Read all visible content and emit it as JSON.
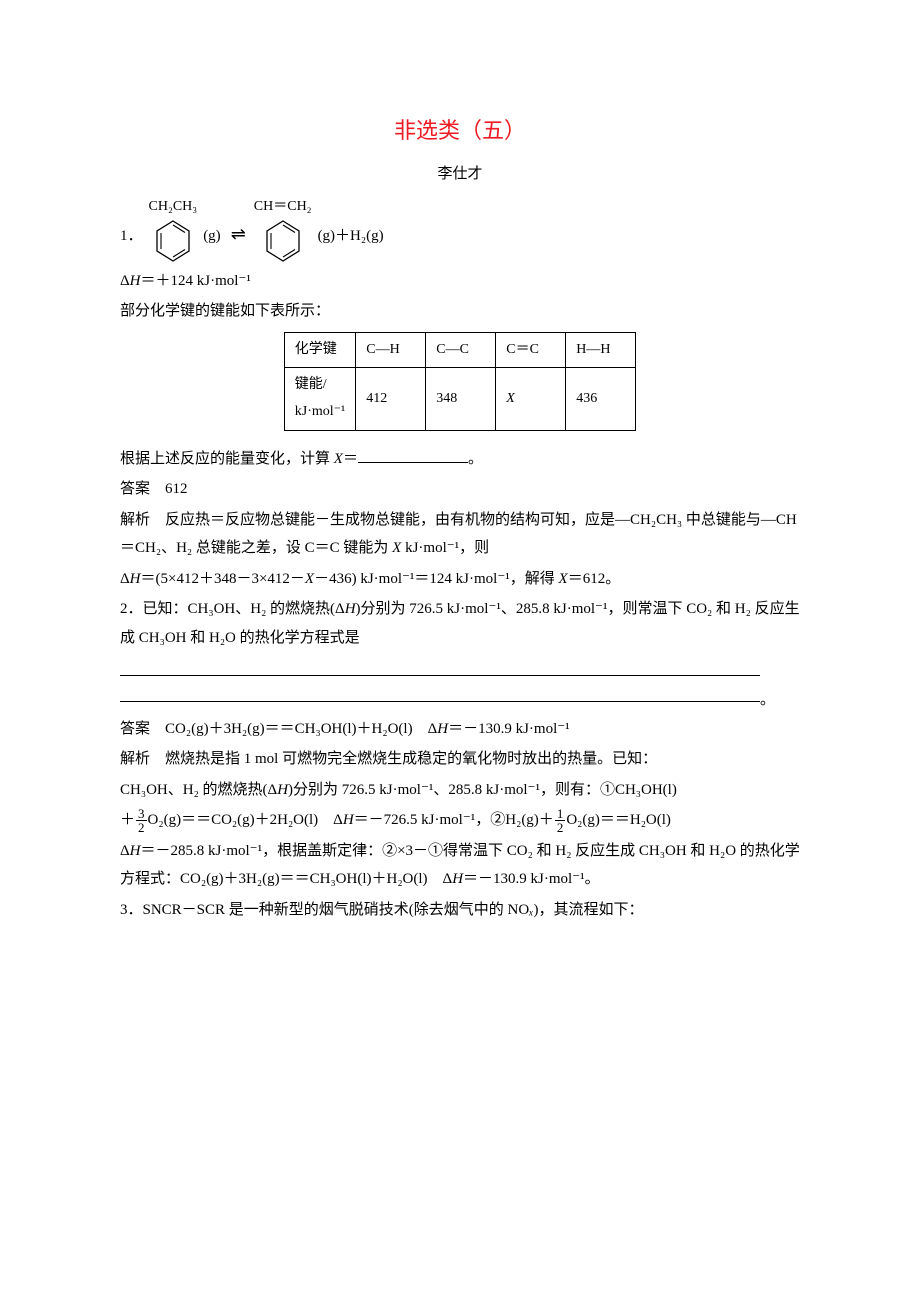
{
  "title": "非选类（五）",
  "author": "李仕才",
  "q1": {
    "num": "1．",
    "subst_left": "CH₂CH₃",
    "subst_right": "CH＝CH₂",
    "g_left": "(g)",
    "eq": "⇌",
    "g_right": "(g)＋H₂(g)",
    "dh": "Δ<i>H</i>＝＋124 kJ·mol⁻¹",
    "intro": "部分化学键的键能如下表所示：",
    "table": {
      "r0c0": "化学键",
      "r0c1": "C—H",
      "r0c2": "C—C",
      "r0c3": "C＝C",
      "r0c4": "H—H",
      "r1c0a": "键能/",
      "r1c0b": "kJ·mol⁻¹",
      "r1c1": "412",
      "r1c2": "348",
      "r1c3": "<i>X</i>",
      "r1c4": "436"
    },
    "ask": "根据上述反应的能量变化，计算 <i>X</i>＝",
    "ask_end": "。",
    "ans_label": "答案　",
    "ans": "612",
    "expl_label": "解析　",
    "expl1": "反应热＝反应物总键能－生成物总键能，由有机物的结构可知，应是—CH₂CH₃ 中总键能与—CH＝CH₂、H₂ 总键能之差，设 C＝C 键能为 <i>X</i> kJ·mol⁻¹，则",
    "expl2": "Δ<i>H</i>＝(5×412＋348－3×412－<i>X</i>－436) kJ·mol⁻¹＝124 kJ·mol⁻¹，解得 <i>X</i>＝612。"
  },
  "q2": {
    "line1": "2．已知：CH₃OH、H₂ 的燃烧热(Δ<i>H</i>)分别为 726.5 kJ·mol⁻¹、285.8 kJ·mol⁻¹，则常温下 CO₂ 和 H₂ 反应生成 CH₃OH 和 H₂O 的热化学方程式是",
    "end": "。",
    "ans_label": "答案　",
    "ans": "CO₂(g)＋3H₂(g)＝＝CH₃OH(l)＋H₂O(l)　Δ<i>H</i>＝－130.9 kJ·mol⁻¹",
    "expl_label": "解析　",
    "expl1": "燃烧热是指 1 mol 可燃物完全燃烧生成稳定的氧化物时放出的热量。已知：",
    "expl2a": "CH₃OH、H₂ 的燃烧热(Δ<i>H</i>)分别为 726.5 kJ·mol⁻¹、285.8 kJ·mol⁻¹，则有：①CH₃OH(l)",
    "expl2b_pre": "＋",
    "frac1_num": "3",
    "frac1_den": "2",
    "expl2b_mid": "O₂(g)＝＝CO₂(g)＋2H₂O(l)　Δ<i>H</i>＝－726.5 kJ·mol⁻¹，②H₂(g)＋",
    "frac2_num": "1",
    "frac2_den": "2",
    "expl2b_post": "O₂(g)＝＝H₂O(l)",
    "expl3": "Δ<i>H</i>＝－285.8 kJ·mol⁻¹，根据盖斯定律：②×3－①得常温下 CO₂ 和 H₂ 反应生成 CH₃OH 和 H₂O 的热化学方程式：CO₂(g)＋3H₂(g)＝＝CH₃OH(l)＋H₂O(l)　Δ<i>H</i>＝－130.9 kJ·mol⁻¹。"
  },
  "q3": {
    "line": "3．SNCR－SCR 是一种新型的烟气脱硝技术(除去烟气中的 NO<i>ₓ</i>)，其流程如下："
  },
  "colors": {
    "title": "#ed1c24",
    "text": "#000000",
    "bg": "#ffffff",
    "border": "#000000"
  }
}
